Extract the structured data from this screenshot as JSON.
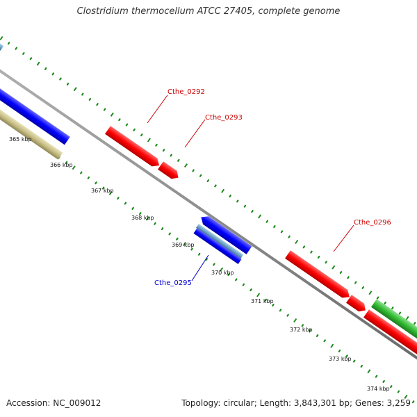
{
  "title": "Clostridium thermocellum ATCC 27405, complete genome",
  "footer": {
    "accession_label": "Accession:",
    "accession": "NC_009012",
    "topology_label": "Topology:",
    "topology": "circular",
    "length_label": "Length:",
    "length": "3,843,301 bp",
    "genes_label": "Genes:",
    "genes": "3,259"
  },
  "scale_labels": [
    "365 kbp",
    "366 kbp",
    "367 kbp",
    "368 kbp",
    "369 kbp",
    "370 kbp",
    "371 kbp",
    "372 kbp",
    "373 kbp",
    "374 kbp"
  ],
  "gene_labels": [
    {
      "name": "Cthe_0292",
      "strand": "forward",
      "color": "#cc0000"
    },
    {
      "name": "Cthe_0293",
      "strand": "forward",
      "color": "#cc0000"
    },
    {
      "name": "Cthe_0296",
      "strand": "forward",
      "color": "#cc0000"
    },
    {
      "name": "Cthe_0295",
      "strand": "reverse",
      "color": "#0000cc"
    }
  ],
  "colors": {
    "forward_cds": "#ff0000",
    "reverse_cds": "#0000ff",
    "rna_feature": "#33bb33",
    "tan_feature": "#c8bf86",
    "light_blue_feature": "#6fa5c8",
    "backbone": "#808080",
    "dots": "#1d8a1d"
  }
}
